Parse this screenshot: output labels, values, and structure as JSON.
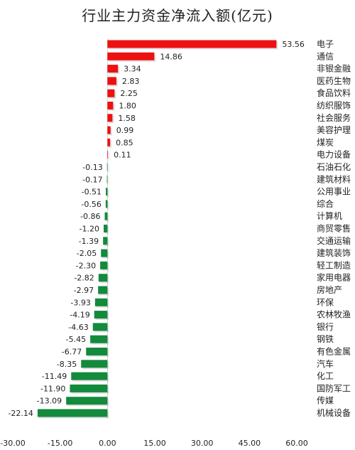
{
  "chart_data": {
    "type": "bar",
    "orientation": "horizontal",
    "title": "行业主力资金净流入额(亿元)",
    "categories": [
      "电子",
      "通信",
      "非银金融",
      "医药生物",
      "食品饮料",
      "纺织服饰",
      "社会服务",
      "美容护理",
      "煤炭",
      "电力设备",
      "石油石化",
      "建筑材料",
      "公用事业",
      "综合",
      "计算机",
      "商贸零售",
      "交通运输",
      "建筑装饰",
      "轻工制造",
      "家用电器",
      "房地产",
      "环保",
      "农林牧渔",
      "银行",
      "钢铁",
      "有色金属",
      "汽车",
      "化工",
      "国防军工",
      "传媒",
      "机械设备"
    ],
    "values": [
      53.56,
      14.86,
      3.34,
      2.83,
      2.25,
      1.8,
      1.58,
      0.99,
      0.85,
      0.11,
      -0.13,
      -0.17,
      -0.51,
      -0.56,
      -0.86,
      -1.2,
      -1.39,
      -2.05,
      -2.3,
      -2.82,
      -2.97,
      -3.93,
      -4.19,
      -4.63,
      -5.45,
      -6.77,
      -8.35,
      -11.49,
      -11.9,
      -13.09,
      -22.14
    ],
    "value_labels": [
      "53.56",
      "14.86",
      "3.34",
      "2.83",
      "2.25",
      "1.80",
      "1.58",
      "0.99",
      "0.85",
      "0.11",
      "-0.13",
      "-0.17",
      "-0.51",
      "-0.56",
      "-0.86",
      "-1.20",
      "-1.39",
      "-2.05",
      "-2.30",
      "-2.82",
      "-2.97",
      "-3.93",
      "-4.19",
      "-4.63",
      "-5.45",
      "-6.77",
      "-8.35",
      "-11.49",
      "-11.90",
      "-13.09",
      "-22.14"
    ],
    "xlim": [
      -30,
      60
    ],
    "xticks": [
      -30,
      -15,
      0,
      15,
      30,
      45,
      60
    ],
    "xtick_labels": [
      "-30.00",
      "-15.00",
      "0.00",
      "15.00",
      "30.00",
      "45.00",
      "60.00"
    ],
    "colors": {
      "positive": "#ee1111",
      "negative": "#138a3c"
    },
    "grid": false,
    "legend": "none"
  }
}
